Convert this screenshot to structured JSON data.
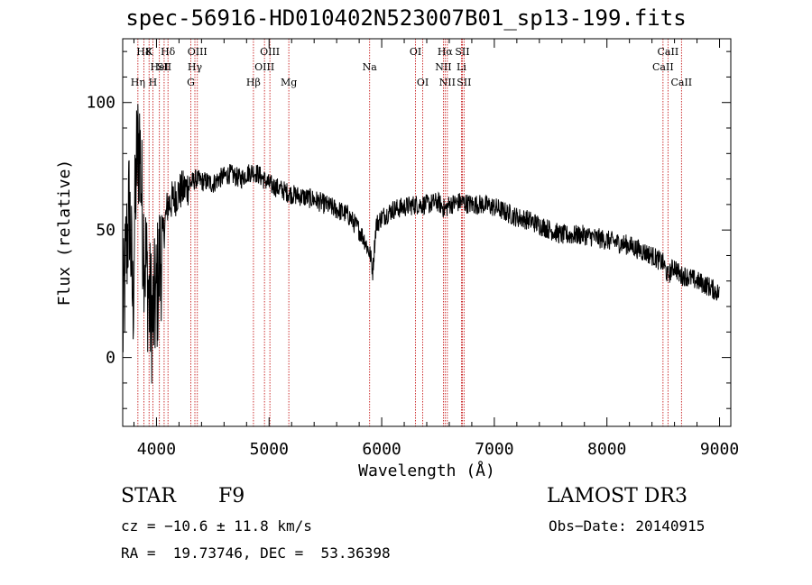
{
  "chart_data": {
    "type": "line",
    "title": "spec-56916-HD010402N523007B01_sp13-199.fits",
    "xlabel": "Wavelength (Å)",
    "ylabel": "Flux (relative)",
    "xlim": [
      3700,
      9100
    ],
    "ylim": [
      -27,
      125
    ],
    "x_ticks": [
      4000,
      5000,
      6000,
      7000,
      8000,
      9000
    ],
    "x_tick_labels": [
      "4000",
      "5000",
      "6000",
      "7000",
      "8000",
      "9000"
    ],
    "y_ticks": [
      0,
      50,
      100
    ],
    "y_tick_labels": [
      "0",
      "50",
      "100"
    ],
    "grid": false,
    "series": [
      {
        "name": "flux",
        "color": "#000000",
        "x": [
          3700,
          3730,
          3760,
          3790,
          3820,
          3850,
          3880,
          3910,
          3940,
          3970,
          4000,
          4050,
          4100,
          4150,
          4200,
          4250,
          4300,
          4350,
          4400,
          4450,
          4500,
          4550,
          4600,
          4650,
          4700,
          4750,
          4800,
          4850,
          4900,
          4950,
          5000,
          5100,
          5200,
          5300,
          5400,
          5500,
          5600,
          5700,
          5800,
          5850,
          5900,
          5920,
          5950,
          6000,
          6100,
          6200,
          6300,
          6400,
          6500,
          6562,
          6600,
          6700,
          6800,
          6900,
          7000,
          7100,
          7200,
          7300,
          7400,
          7500,
          7600,
          7700,
          7800,
          7900,
          8000,
          8100,
          8200,
          8300,
          8400,
          8500,
          8540,
          8600,
          8650,
          8700,
          8800,
          8900,
          9000
        ],
        "y": [
          10,
          40,
          60,
          20,
          75,
          85,
          50,
          35,
          20,
          15,
          25,
          45,
          60,
          62,
          65,
          66,
          68,
          70,
          69,
          69,
          68,
          70,
          71,
          72,
          71,
          70,
          72,
          73,
          72,
          70,
          68,
          66,
          64,
          63,
          62,
          60,
          58,
          56,
          50,
          46,
          40,
          34,
          52,
          55,
          58,
          59,
          60,
          60,
          61,
          58,
          60,
          61,
          60,
          60,
          59,
          57,
          55,
          54,
          52,
          50,
          48,
          48,
          48,
          47,
          46,
          45,
          44,
          42,
          40,
          37,
          32,
          36,
          32,
          32,
          30,
          28,
          25
        ]
      }
    ],
    "line_markers": [
      {
        "name": "H9",
        "label": "Hη",
        "wavelength": 3835,
        "row": 3
      },
      {
        "name": "H8",
        "label": "H8",
        "wavelength": 3889,
        "row": 1
      },
      {
        "name": "CaII K",
        "label": "K",
        "wavelength": 3934,
        "row": 1
      },
      {
        "name": "CaII H",
        "label": "H",
        "wavelength": 3968,
        "row": 3
      },
      {
        "name": "HeI",
        "label": "HeI",
        "wavelength": 4026,
        "row": 2
      },
      {
        "name": "SII",
        "label": "SII",
        "wavelength": 4068,
        "row": 2
      },
      {
        "name": "Hδ",
        "label": "Hδ",
        "wavelength": 4102,
        "row": 1
      },
      {
        "name": "G band",
        "label": "G",
        "wavelength": 4305,
        "row": 3
      },
      {
        "name": "Hγ",
        "label": "Hγ",
        "wavelength": 4341,
        "row": 2
      },
      {
        "name": "OIII 4363",
        "label": "OIII",
        "wavelength": 4363,
        "row": 1
      },
      {
        "name": "Hβ",
        "label": "Hβ",
        "wavelength": 4861,
        "row": 3
      },
      {
        "name": "OIII 4959",
        "label": "OIII",
        "wavelength": 4959,
        "row": 2
      },
      {
        "name": "OIII 5007",
        "label": "OIII",
        "wavelength": 5007,
        "row": 1
      },
      {
        "name": "Mg",
        "label": "Mg",
        "wavelength": 5175,
        "row": 3
      },
      {
        "name": "Na",
        "label": "Na",
        "wavelength": 5893,
        "row": 2
      },
      {
        "name": "OI 6300",
        "label": "OI",
        "wavelength": 6300,
        "row": 1
      },
      {
        "name": "OI 6364",
        "label": "OI",
        "wavelength": 6364,
        "row": 3
      },
      {
        "name": "NII 6548",
        "label": "NII",
        "wavelength": 6548,
        "row": 2
      },
      {
        "name": "Hα",
        "label": "Hα",
        "wavelength": 6563,
        "row": 1
      },
      {
        "name": "NII 6583",
        "label": "NII",
        "wavelength": 6583,
        "row": 3
      },
      {
        "name": "Li",
        "label": "Li",
        "wavelength": 6708,
        "row": 2
      },
      {
        "name": "SII 6716",
        "label": "SII",
        "wavelength": 6716,
        "row": 1
      },
      {
        "name": "SII 6731",
        "label": "SII",
        "wavelength": 6731,
        "row": 3
      },
      {
        "name": "CaII 8498",
        "label": "CaII",
        "wavelength": 8498,
        "row": 2
      },
      {
        "name": "CaII 8542",
        "label": "CaII",
        "wavelength": 8542,
        "row": 1
      },
      {
        "name": "CaII 8662",
        "label": "CaII",
        "wavelength": 8662,
        "row": 3
      }
    ],
    "marker_color": "#c00000"
  },
  "info": {
    "class": "STAR",
    "subclass": "F9",
    "survey": "LAMOST DR3",
    "cz": "cz = −10.6 ± 11.8 km/s",
    "obs_date": "Obs−Date: 20140915",
    "radec": "RA =  19.73746, DEC =  53.36398"
  }
}
